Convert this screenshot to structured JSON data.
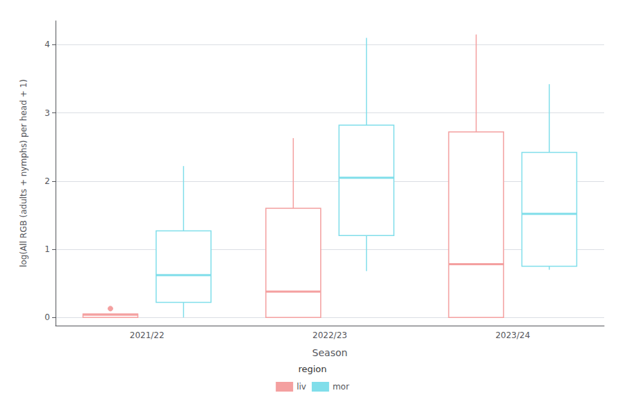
{
  "chart_data": {
    "type": "boxplot",
    "xlabel": "Season",
    "ylabel": "log(All RGB (adults + nymphs) per head + 1)",
    "categories": [
      "2021/22",
      "2022/23",
      "2023/24"
    ],
    "series": [
      {
        "name": "liv",
        "color": "#F4A0A0",
        "values": [
          [
            0.0,
            0.0,
            0.04,
            0.05,
            0.05
          ],
          [
            0.0,
            0.0,
            0.38,
            1.6,
            2.63
          ],
          [
            0.0,
            0.0,
            0.78,
            2.72,
            4.15
          ]
        ],
        "fliers": [
          [
            0.13
          ],
          [],
          []
        ]
      },
      {
        "name": "mor",
        "color": "#80DEEA",
        "values": [
          [
            0.0,
            0.22,
            0.62,
            1.27,
            2.22
          ],
          [
            0.68,
            1.2,
            2.05,
            2.82,
            4.1
          ],
          [
            0.7,
            0.75,
            1.52,
            2.42,
            3.42
          ]
        ],
        "fliers": [
          [],
          [],
          []
        ]
      }
    ],
    "ylim": [
      -0.12,
      4.35
    ],
    "yticks": [
      0,
      1,
      2,
      3,
      4
    ],
    "grid": true,
    "legend": "bottom",
    "legend_title": "region"
  }
}
